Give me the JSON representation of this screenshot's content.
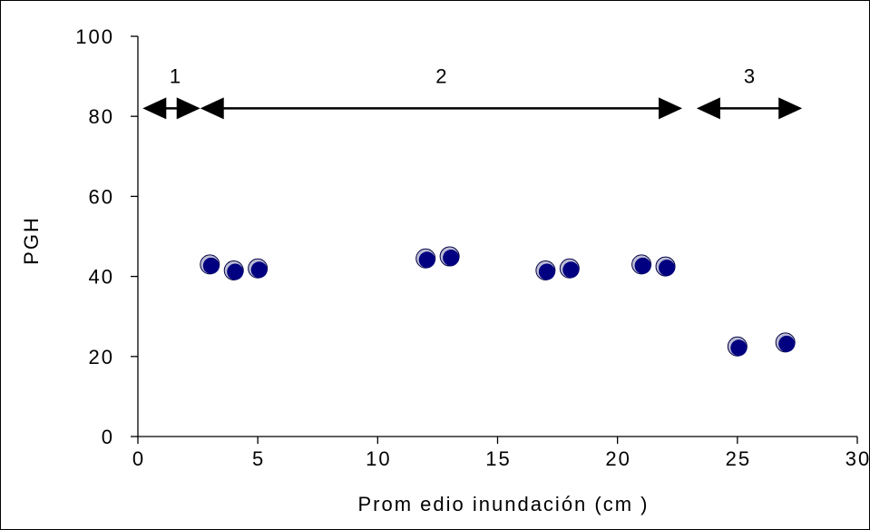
{
  "chart_data": {
    "type": "scatter",
    "title": "",
    "xlabel": "Prom edio inundación (cm )",
    "ylabel": "PGH",
    "xlim": [
      0,
      30
    ],
    "ylim": [
      0,
      100
    ],
    "x_ticks": [
      "0",
      "5",
      "10",
      "15",
      "20",
      "25",
      "30"
    ],
    "y_ticks": [
      "0",
      "20",
      "40",
      "60",
      "80",
      "100"
    ],
    "grid": false,
    "legend": "none",
    "marker_color": "#000080",
    "points": [
      {
        "x": 3,
        "y": 43
      },
      {
        "x": 4,
        "y": 41.5
      },
      {
        "x": 5,
        "y": 42
      },
      {
        "x": 12,
        "y": 44.5
      },
      {
        "x": 13,
        "y": 45
      },
      {
        "x": 17,
        "y": 41.5
      },
      {
        "x": 18,
        "y": 42
      },
      {
        "x": 21,
        "y": 43
      },
      {
        "x": 22,
        "y": 42.5
      },
      {
        "x": 25,
        "y": 22.5
      },
      {
        "x": 27,
        "y": 23.5
      }
    ],
    "annotations": [
      {
        "label": "1",
        "y": 82,
        "x_start": 0.2,
        "x_end": 2.6
      },
      {
        "label": "2",
        "y": 82,
        "x_start": 2.6,
        "x_end": 22.7
      },
      {
        "label": "3",
        "y": 82,
        "x_start": 23.3,
        "x_end": 27.7
      }
    ]
  }
}
